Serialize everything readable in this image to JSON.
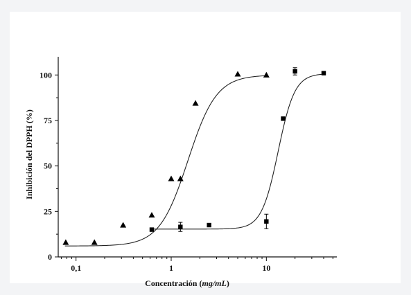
{
  "chart_data": {
    "type": "scatter",
    "title": "",
    "xlabel": {
      "prefix": "Concentración",
      "unit": "mg/mL"
    },
    "ylabel": "Inhibición del DPPH (%)",
    "xscale": "log",
    "xlim": [
      0.065,
      55
    ],
    "ylim": [
      0,
      110
    ],
    "x_tick_labels": [
      {
        "value": 0.1,
        "label": "0,1"
      },
      {
        "value": 1,
        "label": "1"
      },
      {
        "value": 10,
        "label": "10"
      }
    ],
    "y_tick_labels": [
      {
        "value": 0,
        "label": "0"
      },
      {
        "value": 25,
        "label": "25"
      },
      {
        "value": 50,
        "label": "50"
      },
      {
        "value": 75,
        "label": "75"
      },
      {
        "value": 100,
        "label": "100"
      }
    ],
    "grid": false,
    "legend": "none",
    "series": [
      {
        "marker": "triangle",
        "points": [
          {
            "x": 0.078,
            "y": 8
          },
          {
            "x": 0.156,
            "y": 8
          },
          {
            "x": 0.3125,
            "y": 17.5
          },
          {
            "x": 0.625,
            "y": 23
          },
          {
            "x": 1.0,
            "y": 43
          },
          {
            "x": 1.25,
            "y": 43
          },
          {
            "x": 1.8,
            "y": 84.5
          },
          {
            "x": 5.0,
            "y": 100.5
          },
          {
            "x": 10.0,
            "y": 100
          }
        ],
        "fit": {
          "bottom": 6,
          "top": 100,
          "ec50": 1.5,
          "hill": 2.9
        }
      },
      {
        "marker": "square",
        "points": [
          {
            "x": 0.625,
            "y": 15,
            "err": 0
          },
          {
            "x": 1.25,
            "y": 16.5,
            "err": 2.5
          },
          {
            "x": 2.5,
            "y": 17.5,
            "err": 0
          },
          {
            "x": 10.0,
            "y": 19.5,
            "err": 4
          },
          {
            "x": 15.0,
            "y": 76,
            "err": 0
          },
          {
            "x": 20.0,
            "y": 102,
            "err": 2
          },
          {
            "x": 40.0,
            "y": 101,
            "err": 0
          }
        ],
        "fit": {
          "bottom": 15.3,
          "top": 100.8,
          "ec50": 13.3,
          "hill": 5.0
        }
      }
    ]
  }
}
